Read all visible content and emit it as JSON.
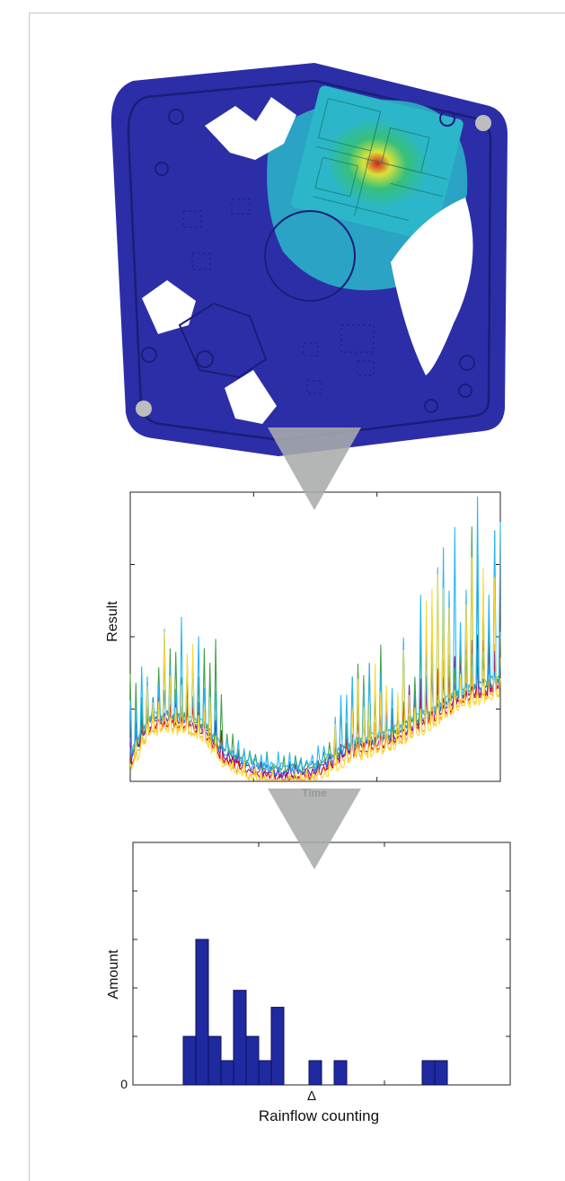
{
  "colors": {
    "plate": "#2c2ea8",
    "plate_dark": "#1b1d78",
    "hole": "#ffffff",
    "heat_low": "#2bb7c9",
    "heat_mid": "#37c07a",
    "heat_high": "#d9e23a",
    "heat_peak": "#d61f1a",
    "arrow": "#a9acaa",
    "bar": "#1f2aa0",
    "axis": "#222222"
  },
  "fea_plate": {
    "icon": "fea-heatmap-plate"
  },
  "time_plot": {
    "ylabel": "Result",
    "xlabel": "Time",
    "series_colors": [
      "#f5a623",
      "#d0021b",
      "#7b1fa2",
      "#1e88e5",
      "#43a047",
      "#29b6f6",
      "#fdd835"
    ],
    "series_offsets": [
      -0.03,
      -0.018,
      -0.006,
      0.004,
      0.012,
      0.02,
      -0.04
    ],
    "baseline_profile": [
      [
        0.0,
        0.08
      ],
      [
        0.05,
        0.2
      ],
      [
        0.1,
        0.22
      ],
      [
        0.15,
        0.21
      ],
      [
        0.2,
        0.18
      ],
      [
        0.25,
        0.1
      ],
      [
        0.32,
        0.05
      ],
      [
        0.4,
        0.03
      ],
      [
        0.5,
        0.04
      ],
      [
        0.55,
        0.08
      ],
      [
        0.6,
        0.12
      ],
      [
        0.7,
        0.15
      ],
      [
        0.8,
        0.22
      ],
      [
        0.9,
        0.3
      ],
      [
        1.0,
        0.34
      ]
    ]
  },
  "rainflow": {
    "ylabel": "Amount",
    "xlabel": "Rainflow counting",
    "delta_tick": "Δ",
    "zero_tick": "0"
  },
  "chart_data": {
    "type": "bar",
    "title": "",
    "xlabel": "Rainflow counting",
    "ylabel": "Amount",
    "xlim": [
      0,
      30
    ],
    "ylim": [
      0,
      10
    ],
    "grid": false,
    "bars": [
      {
        "x": 4,
        "value": 2
      },
      {
        "x": 5,
        "value": 6
      },
      {
        "x": 6,
        "value": 2
      },
      {
        "x": 7,
        "value": 1
      },
      {
        "x": 8,
        "value": 3.9
      },
      {
        "x": 9,
        "value": 2
      },
      {
        "x": 10,
        "value": 1
      },
      {
        "x": 11,
        "value": 3.2
      },
      {
        "x": 14,
        "value": 1
      },
      {
        "x": 16,
        "value": 1
      },
      {
        "x": 23,
        "value": 1
      },
      {
        "x": 24,
        "value": 1
      }
    ]
  }
}
